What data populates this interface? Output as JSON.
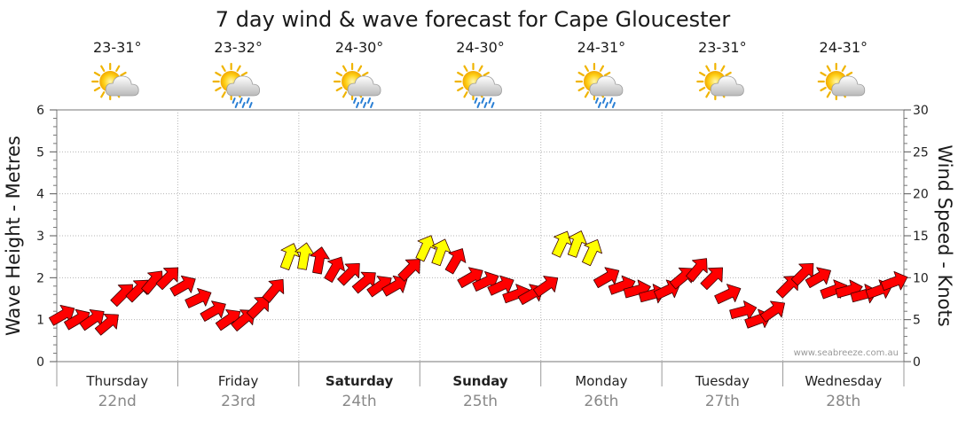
{
  "chart_data": {
    "type": "line",
    "title": "7 day wind & wave forecast for Cape Gloucester",
    "ylabel_left": "Wave Height - Metres",
    "ylabel_right": "Wind Speed - Knots",
    "ylim_left": [
      0,
      6
    ],
    "ylim_right": [
      0,
      30
    ],
    "yticks_left": [
      "0",
      "1",
      "2",
      "3",
      "4",
      "5",
      "6"
    ],
    "yticks_right": [
      "0",
      "5",
      "10",
      "15",
      "20",
      "25",
      "30"
    ],
    "credit": "www.seabreeze.com.au",
    "days": [
      {
        "name": "Thursday",
        "date": "22nd",
        "temp": "23-31°",
        "weather": "partly-cloudy-icon",
        "bold": false
      },
      {
        "name": "Friday",
        "date": "23rd",
        "temp": "23-32°",
        "weather": "showers-icon",
        "bold": false
      },
      {
        "name": "Saturday",
        "date": "24th",
        "temp": "24-30°",
        "weather": "showers-icon",
        "bold": true
      },
      {
        "name": "Sunday",
        "date": "25th",
        "temp": "24-30°",
        "weather": "showers-icon",
        "bold": true
      },
      {
        "name": "Monday",
        "date": "26th",
        "temp": "24-31°",
        "weather": "showers-icon",
        "bold": false
      },
      {
        "name": "Tuesday",
        "date": "27th",
        "temp": "23-31°",
        "weather": "partly-cloudy-icon",
        "bold": false
      },
      {
        "name": "Wednesday",
        "date": "28th",
        "temp": "24-31°",
        "weather": "partly-cloudy-icon",
        "bold": false
      }
    ],
    "series": [
      {
        "name": "Wind Speed (knots) - arrows",
        "x_hours": [
          0,
          3,
          6,
          9,
          12,
          15,
          18,
          21,
          24,
          27,
          30,
          33,
          36,
          39,
          42,
          45,
          48,
          51,
          54,
          57,
          60,
          63,
          66,
          69,
          72,
          75,
          78,
          81,
          84,
          87,
          90,
          93,
          96,
          99,
          102,
          105,
          108,
          111,
          114,
          117,
          120,
          123,
          126,
          129,
          132,
          135,
          138,
          141,
          144,
          147,
          150,
          153,
          156,
          159,
          162,
          165
        ],
        "values": [
          5.5,
          5,
          5,
          4.5,
          8,
          8.5,
          9.5,
          10,
          9,
          7.5,
          6,
          5,
          5,
          6.5,
          8.5,
          12.5,
          12.5,
          12,
          11,
          10.5,
          9.5,
          9,
          9,
          11,
          13.5,
          13,
          12,
          10,
          9.5,
          9,
          8,
          8,
          9,
          14,
          14,
          13,
          10,
          9,
          8.5,
          8,
          8.5,
          10,
          11,
          10,
          8,
          6,
          5,
          6,
          9,
          10.5,
          10,
          8.5,
          8.5,
          8,
          8.5,
          9.5
        ],
        "directions_deg": [
          240,
          240,
          235,
          230,
          225,
          225,
          220,
          225,
          240,
          245,
          240,
          235,
          230,
          225,
          220,
          200,
          190,
          190,
          210,
          225,
          230,
          235,
          240,
          225,
          205,
          200,
          210,
          240,
          245,
          245,
          250,
          240,
          235,
          205,
          200,
          205,
          240,
          250,
          255,
          255,
          245,
          230,
          220,
          225,
          245,
          255,
          250,
          235,
          225,
          225,
          240,
          250,
          255,
          255,
          250,
          250
        ],
        "color_scale": [
          {
            "max": 12,
            "color": "#ff0000"
          },
          {
            "max": 20,
            "color": "#ffff00"
          }
        ]
      }
    ]
  }
}
